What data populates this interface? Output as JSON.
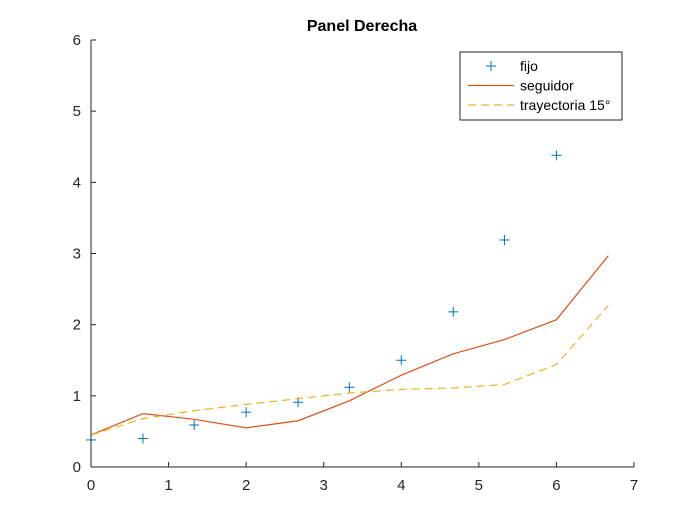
{
  "chart_data": {
    "type": "line",
    "title": "Panel Derecha",
    "xlabel": "",
    "ylabel": "",
    "xlim": [
      0,
      7
    ],
    "ylim": [
      0,
      6
    ],
    "xticks": [
      0,
      1,
      2,
      3,
      4,
      5,
      6,
      7
    ],
    "yticks": [
      0,
      1,
      2,
      3,
      4,
      5,
      6
    ],
    "grid": false,
    "legend_position": "top-right",
    "series": [
      {
        "name": "fijo",
        "style": "marker-plus",
        "color": "#0072BD",
        "x": [
          0,
          0.67,
          1.33,
          2.0,
          2.67,
          3.33,
          4.0,
          4.67,
          5.33,
          6.0
        ],
        "y": [
          0.38,
          0.4,
          0.59,
          0.77,
          0.91,
          1.12,
          1.5,
          2.18,
          3.19,
          4.38
        ]
      },
      {
        "name": "seguidor",
        "style": "solid",
        "color": "#D95319",
        "x": [
          0,
          0.67,
          1.33,
          2.0,
          2.67,
          3.33,
          4.0,
          4.67,
          5.33,
          6.0,
          6.67
        ],
        "y": [
          0.45,
          0.75,
          0.67,
          0.55,
          0.65,
          0.93,
          1.29,
          1.59,
          1.79,
          2.07,
          2.97
        ]
      },
      {
        "name": "trayectoria 15°",
        "style": "dashed",
        "color": "#EDB120",
        "x": [
          0,
          0.67,
          1.33,
          2.0,
          2.67,
          3.33,
          4.0,
          4.67,
          5.33,
          6.0,
          6.67
        ],
        "y": [
          0.45,
          0.68,
          0.79,
          0.88,
          0.96,
          1.04,
          1.09,
          1.11,
          1.16,
          1.44,
          2.27
        ]
      }
    ]
  }
}
